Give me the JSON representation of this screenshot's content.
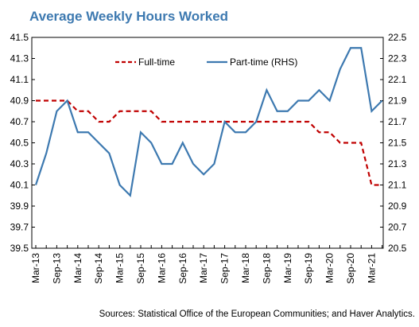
{
  "chart_data": {
    "type": "line",
    "title": "Average Weekly Hours Worked",
    "source": "Sources: Statistical Office of the European Communities; and Haver Analytics.",
    "categories": [
      "Mar-13",
      null,
      "Sep-13",
      null,
      "Mar-14",
      null,
      "Sep-14",
      null,
      "Mar-15",
      null,
      "Sep-15",
      null,
      "Mar-16",
      null,
      "Sep-16",
      null,
      "Mar-17",
      null,
      "Sep-17",
      null,
      "Mar-18",
      null,
      "Sep-18",
      null,
      "Mar-19",
      null,
      "Sep-19",
      null,
      "Mar-20",
      null,
      "Sep-20",
      null,
      "Mar-21",
      null
    ],
    "series": [
      {
        "name": "Full-time",
        "color": "#c00000",
        "dashed": true,
        "values": [
          40.9,
          40.9,
          40.9,
          40.9,
          40.8,
          40.8,
          40.7,
          40.7,
          40.8,
          40.8,
          40.8,
          40.8,
          40.7,
          40.7,
          40.7,
          40.7,
          40.7,
          40.7,
          40.7,
          40.7,
          40.7,
          40.7,
          40.7,
          40.7,
          40.7,
          40.7,
          40.7,
          40.6,
          40.6,
          40.5,
          40.5,
          40.5,
          40.1,
          40.1
        ]
      },
      {
        "name": "Part-time (RHS)",
        "color": "#3d79b0",
        "axis": "y2",
        "values": [
          21.1,
          21.4,
          21.8,
          21.9,
          21.6,
          21.6,
          21.5,
          21.4,
          21.1,
          21.0,
          21.6,
          21.5,
          21.3,
          21.3,
          21.5,
          21.3,
          21.2,
          21.3,
          21.7,
          21.6,
          21.6,
          21.7,
          22.0,
          21.8,
          21.8,
          21.9,
          21.9,
          22.0,
          21.9,
          22.2,
          22.4,
          22.4,
          21.8,
          21.9
        ]
      }
    ],
    "ylim": [
      39.5,
      41.5
    ],
    "yticks": [
      39.5,
      39.7,
      39.9,
      40.1,
      40.3,
      40.5,
      40.7,
      40.9,
      41.1,
      41.3,
      41.5
    ],
    "y2lim": [
      20.5,
      22.5
    ],
    "y2ticks": [
      20.5,
      20.7,
      20.9,
      21.1,
      21.3,
      21.5,
      21.7,
      21.9,
      22.1,
      22.3,
      22.5
    ]
  }
}
